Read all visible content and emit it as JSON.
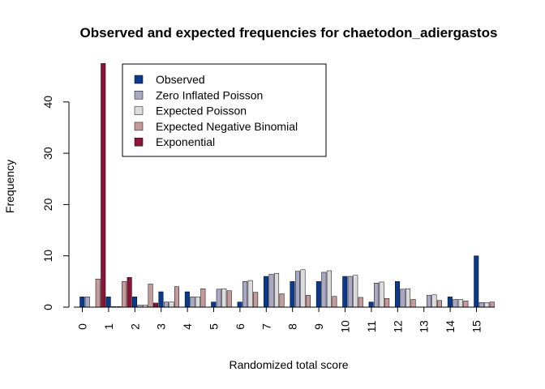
{
  "chart_data": {
    "type": "bar",
    "title": "Observed and expected frequencies for chaetodon_adiergastos",
    "xlabel": "Randomized total score",
    "ylabel": "Frequency",
    "ylim": [
      0,
      48
    ],
    "yticks": [
      0,
      10,
      20,
      30,
      40
    ],
    "categories": [
      "0",
      "1",
      "2",
      "3",
      "4",
      "5",
      "6",
      "7",
      "8",
      "9",
      "10",
      "11",
      "12",
      "13",
      "14",
      "15"
    ],
    "legend_position": "top-left",
    "series": [
      {
        "name": "Observed",
        "color": "#0b3a8c",
        "values": [
          2,
          2,
          2,
          3,
          3,
          1,
          1,
          6,
          5,
          5,
          6,
          1,
          5,
          0,
          2,
          10
        ]
      },
      {
        "name": "Zero Inflated Poisson",
        "color": "#a8a8c4",
        "values": [
          2,
          0.1,
          0.4,
          1,
          2,
          3.5,
          5,
          6.4,
          7,
          6.8,
          6,
          4.7,
          3.5,
          2.3,
          1.5,
          0.9
        ]
      },
      {
        "name": "Expected Poisson",
        "color": "#dcdcdc",
        "values": [
          0,
          0.1,
          0.4,
          1,
          2,
          3.6,
          5.2,
          6.6,
          7.3,
          7.1,
          6.2,
          4.9,
          3.6,
          2.4,
          1.5,
          0.9
        ]
      },
      {
        "name": "Expected Negative Binomial",
        "color": "#c49a9a",
        "values": [
          5.5,
          5,
          4.5,
          4,
          3.6,
          3.2,
          2.9,
          2.6,
          2.3,
          2.1,
          1.9,
          1.7,
          1.5,
          1.3,
          1.2,
          1.0
        ]
      },
      {
        "name": "Exponential",
        "color": "#8b1438",
        "values": [
          47.5,
          5.8,
          0.8,
          0,
          0,
          0,
          0,
          0,
          0,
          0,
          0,
          0,
          0,
          0,
          0,
          0
        ]
      }
    ]
  }
}
